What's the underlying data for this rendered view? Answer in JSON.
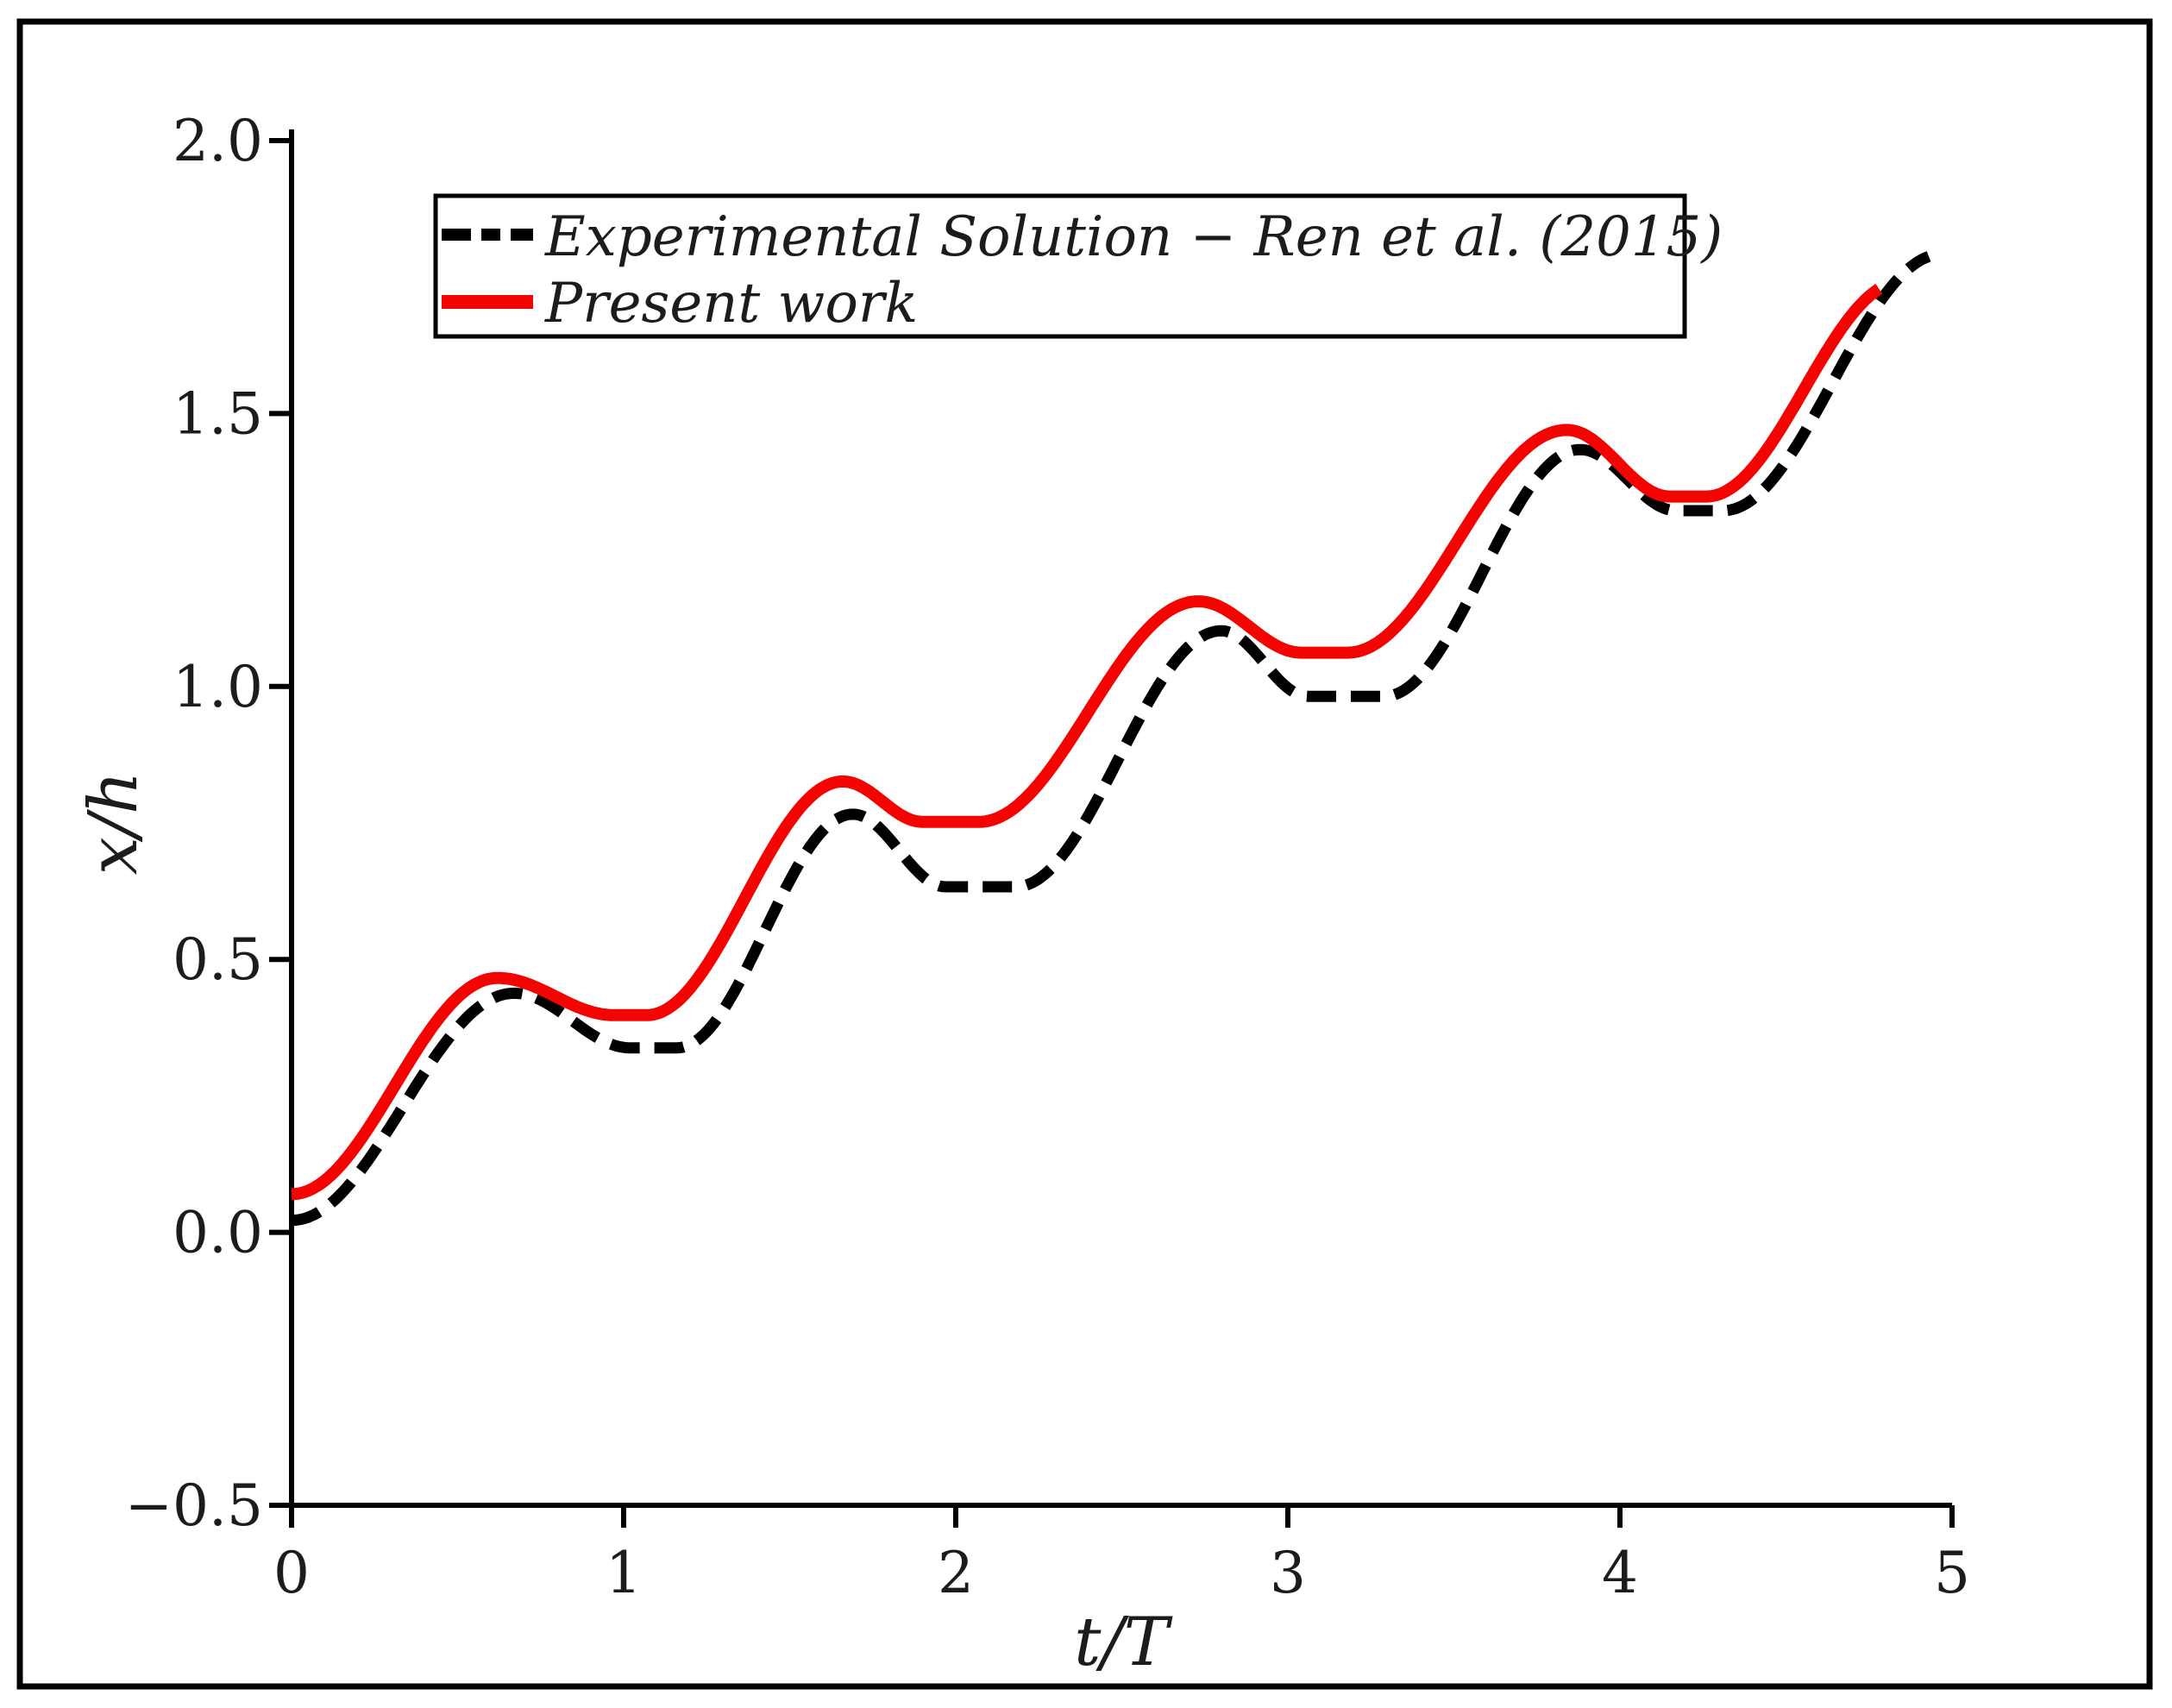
{
  "chart_data": {
    "type": "line",
    "title": "",
    "xlabel": "t/T",
    "ylabel": "x/h",
    "xlim": [
      0,
      5
    ],
    "ylim": [
      -0.5,
      2.0
    ],
    "grid": false,
    "legend_position": "upper left",
    "x_ticks": {
      "values": [
        0,
        1,
        2,
        3,
        4,
        5
      ],
      "labels": [
        "0",
        "1",
        "2",
        "3",
        "4",
        "5"
      ]
    },
    "y_ticks": {
      "values": [
        2.0,
        1.5,
        1.0,
        0.5,
        0.0,
        -0.5
      ],
      "labels": [
        "2.0",
        "1.5",
        "1.0",
        "0.5",
        "0.0",
        "−0.5"
      ]
    },
    "series": [
      {
        "name": "Experimental Solution − Ren et al. (2015)",
        "color": "#000000",
        "style": "dashed",
        "line_width": 13,
        "interpolation": "cosine-through-extrema",
        "t_end": 4.93,
        "points": [
          [
            0.0,
            0.022
          ],
          [
            0.67,
            0.438
          ],
          [
            1.02,
            0.338
          ],
          [
            1.16,
            0.338
          ],
          [
            1.69,
            0.766
          ],
          [
            1.97,
            0.633
          ],
          [
            2.18,
            0.633
          ],
          [
            2.8,
            1.102
          ],
          [
            3.06,
            0.982
          ],
          [
            3.29,
            0.982
          ],
          [
            3.88,
            1.434
          ],
          [
            4.17,
            1.322
          ],
          [
            4.31,
            1.322
          ],
          [
            4.97,
            1.792
          ]
        ]
      },
      {
        "name": "Present work",
        "color": "#f40400",
        "style": "solid",
        "line_width": 14,
        "interpolation": "cosine-through-extrema",
        "t_end": 4.78,
        "points": [
          [
            0.0,
            0.07
          ],
          [
            0.62,
            0.466
          ],
          [
            0.97,
            0.398
          ],
          [
            1.07,
            0.398
          ],
          [
            1.66,
            0.826
          ],
          [
            1.9,
            0.752
          ],
          [
            2.07,
            0.752
          ],
          [
            2.73,
            1.156
          ],
          [
            3.04,
            1.062
          ],
          [
            3.18,
            1.062
          ],
          [
            3.84,
            1.47
          ],
          [
            4.15,
            1.348
          ],
          [
            4.26,
            1.348
          ],
          [
            4.85,
            1.742
          ]
        ]
      }
    ]
  }
}
